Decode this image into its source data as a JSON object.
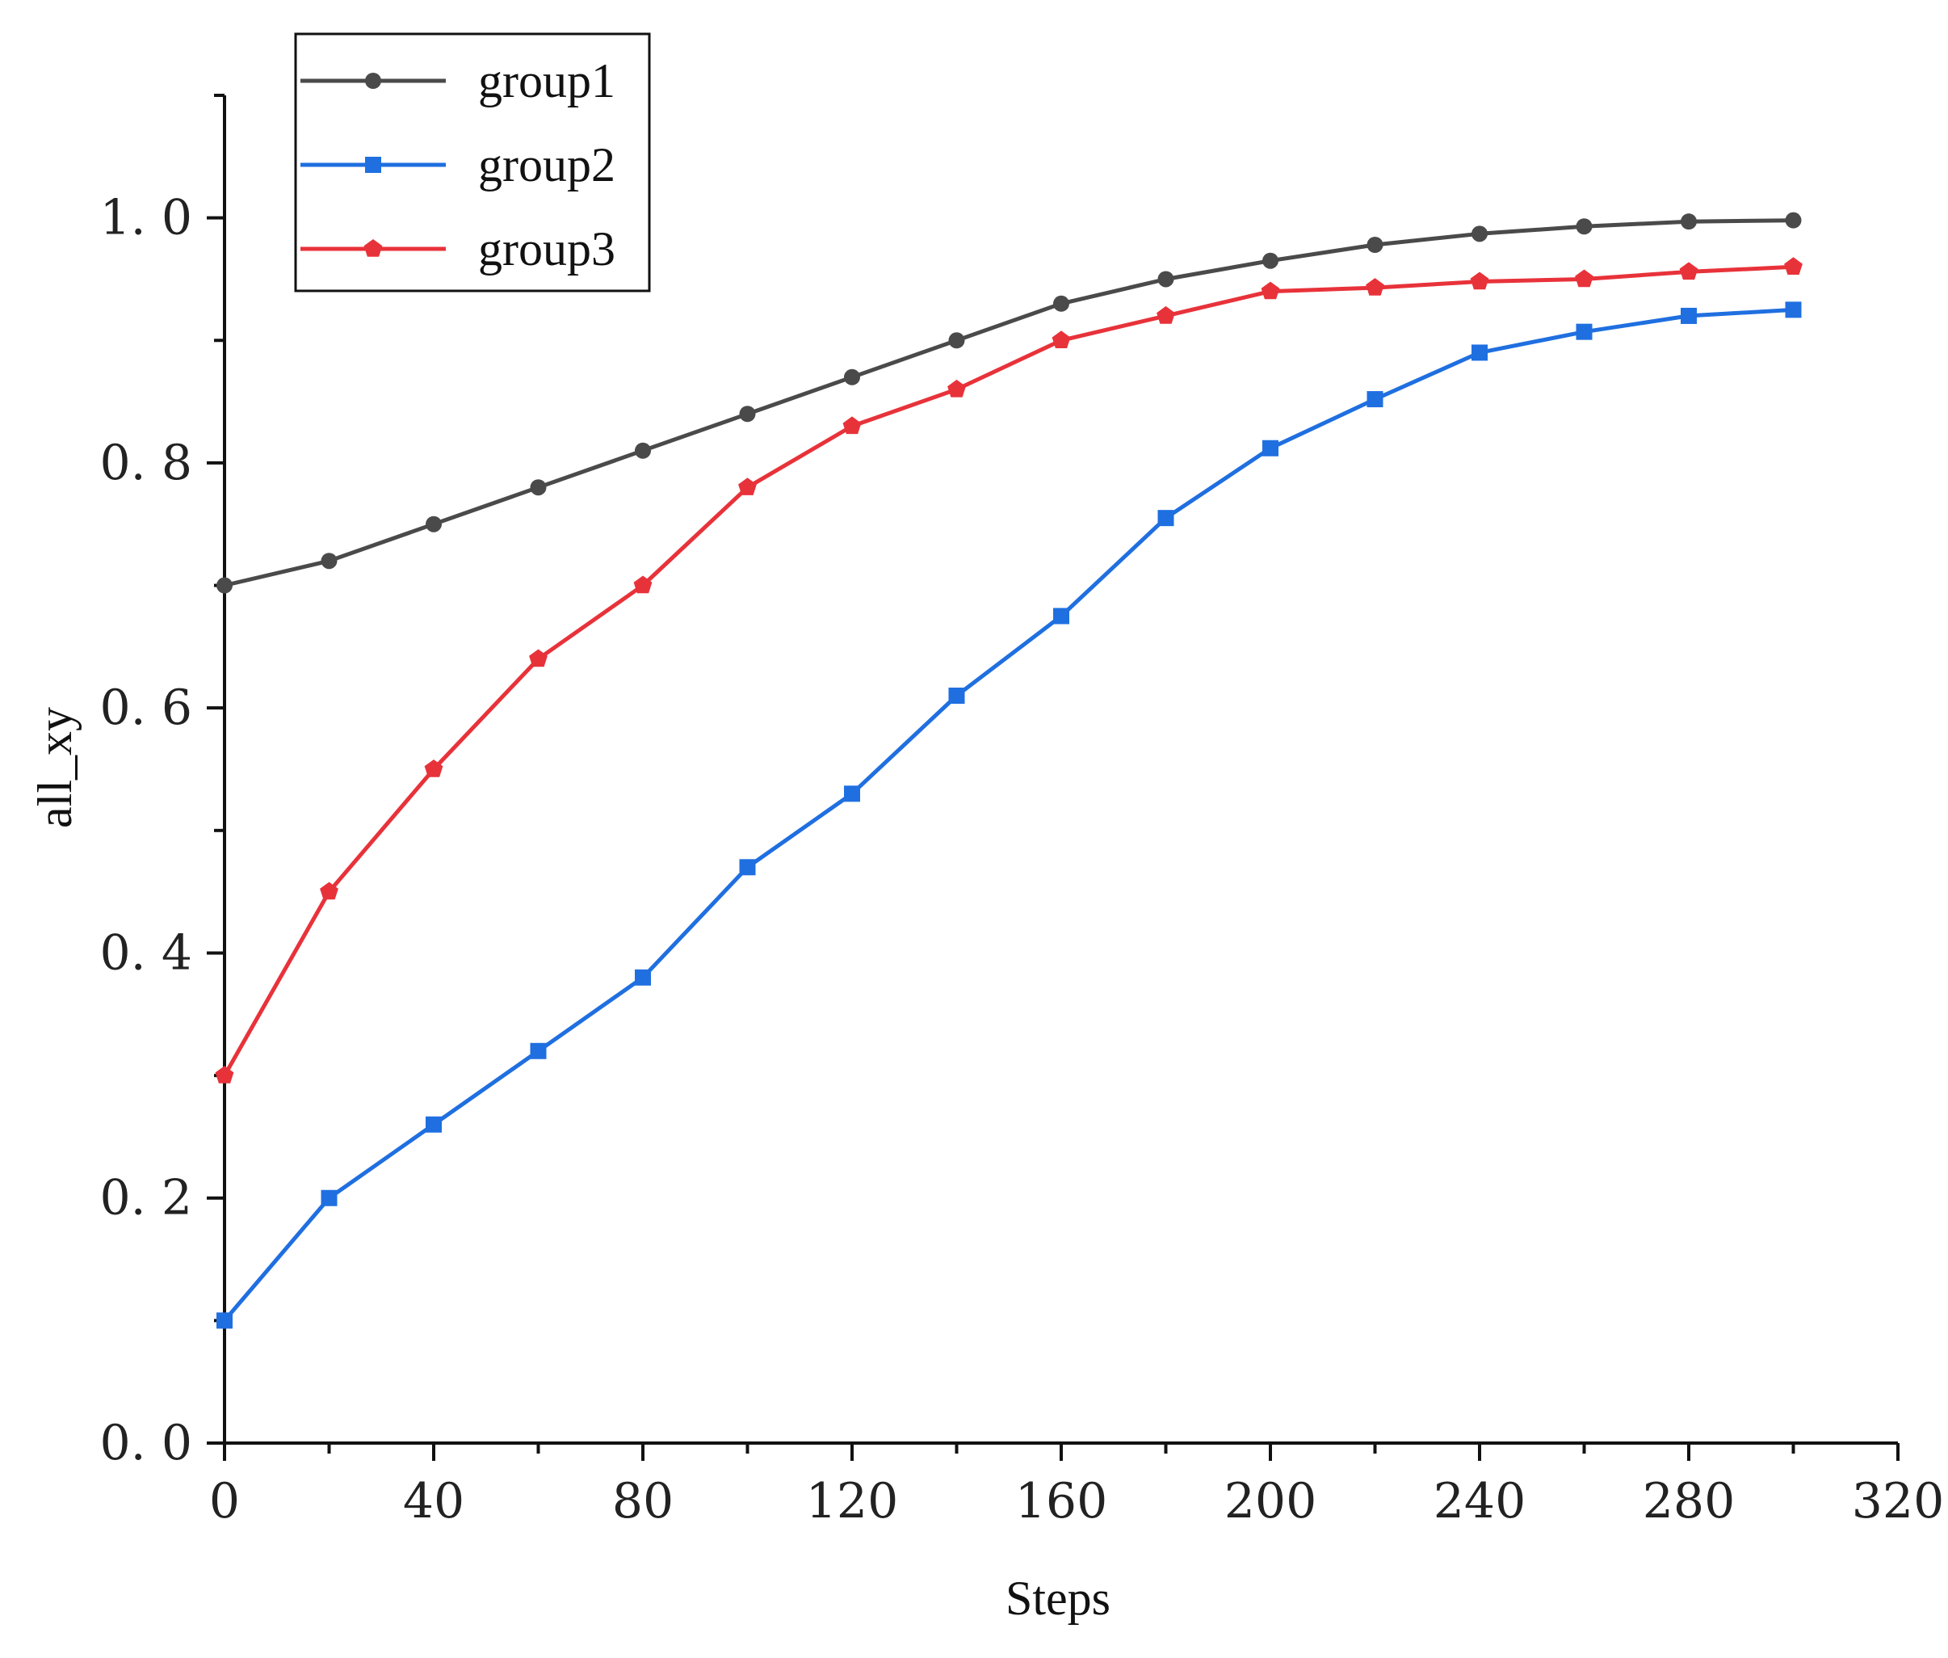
{
  "chart_data": {
    "type": "line",
    "title": "",
    "xlabel": "Steps",
    "ylabel": "all_xy",
    "xlim": [
      0,
      320
    ],
    "ylim": [
      0,
      1.1
    ],
    "x_ticks": [
      "0",
      "40",
      "80",
      "120",
      "160",
      "200",
      "240",
      "280",
      "320"
    ],
    "y_ticks": [
      "0. 0",
      "0. 2",
      "0. 4",
      "0. 6",
      "0. 8",
      "1. 0"
    ],
    "grid": false,
    "legend_position": "top-left",
    "x": [
      0,
      20,
      40,
      60,
      80,
      100,
      120,
      140,
      160,
      180,
      200,
      220,
      240,
      260,
      280,
      300
    ],
    "series": [
      {
        "name": "group1",
        "color": "#4a4a4a",
        "marker": "circle",
        "values": [
          0.7,
          0.72,
          0.75,
          0.78,
          0.81,
          0.84,
          0.87,
          0.9,
          0.93,
          0.95,
          0.965,
          0.978,
          0.987,
          0.993,
          0.997,
          0.998
        ]
      },
      {
        "name": "group2",
        "color": "#1f6fe0",
        "marker": "square",
        "values": [
          0.1,
          0.2,
          0.26,
          0.32,
          0.38,
          0.47,
          0.53,
          0.61,
          0.675,
          0.755,
          0.812,
          0.852,
          0.89,
          0.907,
          0.92,
          0.925
        ]
      },
      {
        "name": "group3",
        "color": "#e8323a",
        "marker": "pentagon",
        "values": [
          0.3,
          0.45,
          0.55,
          0.64,
          0.7,
          0.78,
          0.83,
          0.86,
          0.9,
          0.92,
          0.94,
          0.943,
          0.948,
          0.95,
          0.956,
          0.96
        ]
      }
    ]
  }
}
